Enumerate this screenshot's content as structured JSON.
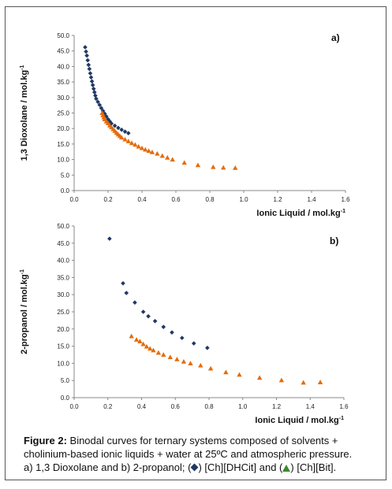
{
  "caption": {
    "label": "Figure 2:",
    "line1": " Binodal curves for ternary systems composed of solvents +",
    "line2": "cholinium-based ionic liquids + water at 25ºC and atmospheric pressure.",
    "line3_a": "a) 1,3 Dioxolane and b) 2-propanol; (",
    "line3_b": ") [Ch][DHCit] and (",
    "line3_c": ") [Ch][Bit].",
    "diamond_icon": "diamond-icon",
    "triangle_icon": "triangle-icon"
  },
  "colors": {
    "series1": "#1f3864",
    "series2": "#e46c0a",
    "caption_triangle": "#3c8a2e",
    "axis": "#888888"
  },
  "chart_data": [
    {
      "type": "scatter",
      "panel_label": "a)",
      "xlabel": "Ionic Liquid / mol.kg-1",
      "ylabel": "1,3 Dioxolane / mol.kg-1",
      "xlim": [
        0,
        1.6
      ],
      "ylim": [
        0,
        50
      ],
      "xticks": [
        "0.0",
        "0.2",
        "0.4",
        "0.6",
        "0.8",
        "1.0",
        "1.2",
        "1.4",
        "1.6"
      ],
      "yticks": [
        "0.0",
        "5.0",
        "10.0",
        "15.0",
        "20.0",
        "25.0",
        "30.0",
        "35.0",
        "40.0",
        "45.0",
        "50.0"
      ],
      "grid": false,
      "series": [
        {
          "marker": "diamond",
          "color": "#1f3864",
          "points": [
            [
              0.065,
              46.2
            ],
            [
              0.07,
              44.8
            ],
            [
              0.075,
              43.5
            ],
            [
              0.08,
              42.0
            ],
            [
              0.085,
              40.5
            ],
            [
              0.09,
              39.2
            ],
            [
              0.095,
              37.8
            ],
            [
              0.1,
              36.5
            ],
            [
              0.105,
              35.2
            ],
            [
              0.11,
              34.0
            ],
            [
              0.115,
              32.8
            ],
            [
              0.12,
              31.7
            ],
            [
              0.125,
              30.6
            ],
            [
              0.13,
              29.6
            ],
            [
              0.14,
              28.6
            ],
            [
              0.15,
              27.6
            ],
            [
              0.16,
              26.6
            ],
            [
              0.17,
              25.7
            ],
            [
              0.18,
              24.8
            ],
            [
              0.19,
              23.9
            ],
            [
              0.2,
              23.0
            ],
            [
              0.21,
              22.3
            ],
            [
              0.22,
              21.6
            ],
            [
              0.24,
              20.9
            ],
            [
              0.26,
              20.2
            ],
            [
              0.28,
              19.6
            ],
            [
              0.3,
              19.0
            ],
            [
              0.32,
              18.5
            ]
          ]
        },
        {
          "marker": "triangle",
          "color": "#e46c0a",
          "points": [
            [
              0.165,
              25.0
            ],
            [
              0.17,
              24.3
            ],
            [
              0.175,
              23.6
            ],
            [
              0.18,
              23.0
            ],
            [
              0.19,
              22.3
            ],
            [
              0.2,
              21.7
            ],
            [
              0.21,
              21.0
            ],
            [
              0.22,
              20.4
            ],
            [
              0.23,
              19.8
            ],
            [
              0.24,
              19.2
            ],
            [
              0.25,
              18.6
            ],
            [
              0.26,
              18.1
            ],
            [
              0.27,
              17.6
            ],
            [
              0.28,
              17.1
            ],
            [
              0.3,
              16.5
            ],
            [
              0.32,
              15.9
            ],
            [
              0.34,
              15.3
            ],
            [
              0.36,
              14.8
            ],
            [
              0.38,
              14.2
            ],
            [
              0.4,
              13.7
            ],
            [
              0.42,
              13.2
            ],
            [
              0.44,
              12.8
            ],
            [
              0.46,
              12.4
            ],
            [
              0.49,
              11.9
            ],
            [
              0.52,
              11.2
            ],
            [
              0.55,
              10.6
            ],
            [
              0.58,
              10.0
            ],
            [
              0.65,
              9.0
            ],
            [
              0.73,
              8.2
            ],
            [
              0.82,
              7.6
            ],
            [
              0.88,
              7.4
            ],
            [
              0.95,
              7.3
            ]
          ]
        }
      ]
    },
    {
      "type": "scatter",
      "panel_label": "b)",
      "xlabel": "Ionic Liquid / mol.kg-1",
      "ylabel": "2-propanol / mol.kg-1",
      "xlim": [
        0,
        1.6
      ],
      "ylim": [
        0,
        50
      ],
      "xticks": [
        "0.0",
        "0.2",
        "0.4",
        "0.6",
        "0.8",
        "1.0",
        "1.2",
        "1.4",
        "1.6"
      ],
      "yticks": [
        "0.0",
        "5.0",
        "10.0",
        "15.0",
        "20.0",
        "25.0",
        "30.0",
        "35.0",
        "40.0",
        "45.0",
        "50.0"
      ],
      "grid": false,
      "series": [
        {
          "marker": "diamond",
          "color": "#1f3864",
          "points": [
            [
              0.21,
              46.3
            ],
            [
              0.29,
              33.3
            ],
            [
              0.31,
              30.5
            ],
            [
              0.36,
              27.7
            ],
            [
              0.41,
              25.0
            ],
            [
              0.44,
              23.7
            ],
            [
              0.48,
              22.3
            ],
            [
              0.53,
              20.6
            ],
            [
              0.58,
              19.0
            ],
            [
              0.64,
              17.4
            ],
            [
              0.71,
              15.8
            ],
            [
              0.79,
              14.5
            ]
          ]
        },
        {
          "marker": "triangle",
          "color": "#e46c0a",
          "points": [
            [
              0.34,
              17.9
            ],
            [
              0.37,
              16.9
            ],
            [
              0.39,
              16.4
            ],
            [
              0.41,
              15.6
            ],
            [
              0.43,
              14.9
            ],
            [
              0.45,
              14.3
            ],
            [
              0.47,
              13.8
            ],
            [
              0.5,
              13.1
            ],
            [
              0.53,
              12.5
            ],
            [
              0.57,
              11.8
            ],
            [
              0.61,
              11.2
            ],
            [
              0.65,
              10.5
            ],
            [
              0.69,
              10.0
            ],
            [
              0.75,
              9.4
            ],
            [
              0.81,
              8.5
            ],
            [
              0.9,
              7.4
            ],
            [
              0.98,
              6.7
            ],
            [
              1.1,
              5.8
            ],
            [
              1.23,
              5.1
            ],
            [
              1.36,
              4.4
            ],
            [
              1.46,
              4.5
            ]
          ]
        }
      ]
    }
  ]
}
